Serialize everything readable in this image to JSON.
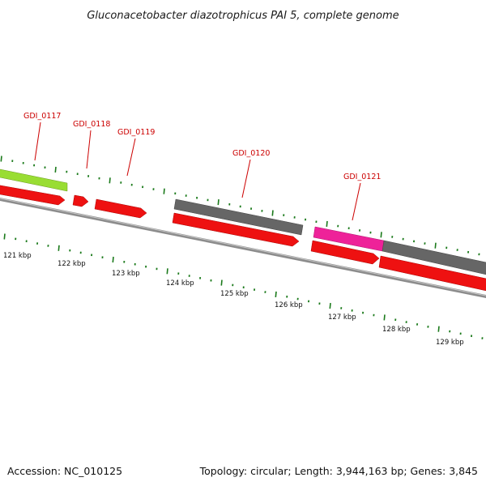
{
  "title": "Gluconacetobacter diazotrophicus PAI 5, complete genome",
  "footer": {
    "accession": "Accession: NC_010125",
    "summary": "Topology: circular; Length: 3,944,163 bp; Genes: 3,845"
  },
  "colors": {
    "background": "#ffffff",
    "backbone": "#8c8c8c",
    "cds_red": "#ee1111",
    "cds_green": "#99dd33",
    "cds_gray": "#666666",
    "cds_magenta": "#ee2299",
    "tick_green": "#1b7a1b",
    "gene_label_red": "#cc0000"
  },
  "gene_labels": [
    {
      "id": "GDI_0117"
    },
    {
      "id": "GDI_0118"
    },
    {
      "id": "GDI_0119"
    },
    {
      "id": "GDI_0120"
    },
    {
      "id": "GDI_0121"
    }
  ],
  "scale_labels": [
    "121 kbp",
    "122 kbp",
    "123 kbp",
    "124 kbp",
    "125 kbp",
    "126 kbp",
    "127 kbp",
    "128 kbp",
    "129 kbp"
  ],
  "features": [
    {
      "name": "gene-green",
      "strand": "outer",
      "color": "green"
    },
    {
      "name": "gene-gray-1",
      "strand": "outer",
      "color": "gray"
    },
    {
      "name": "gene-magenta",
      "strand": "outer",
      "color": "magenta"
    },
    {
      "name": "gene-gray-2",
      "strand": "outer",
      "color": "gray"
    },
    {
      "name": "cds-red-1",
      "strand": "inner",
      "color": "red"
    },
    {
      "name": "cds-red-2",
      "strand": "inner",
      "color": "red"
    },
    {
      "name": "cds-red-3",
      "strand": "inner",
      "color": "red"
    },
    {
      "name": "cds-red-4",
      "strand": "inner",
      "color": "red"
    },
    {
      "name": "cds-red-5",
      "strand": "inner",
      "color": "red"
    },
    {
      "name": "cds-red-6",
      "strand": "inner",
      "color": "red"
    }
  ]
}
